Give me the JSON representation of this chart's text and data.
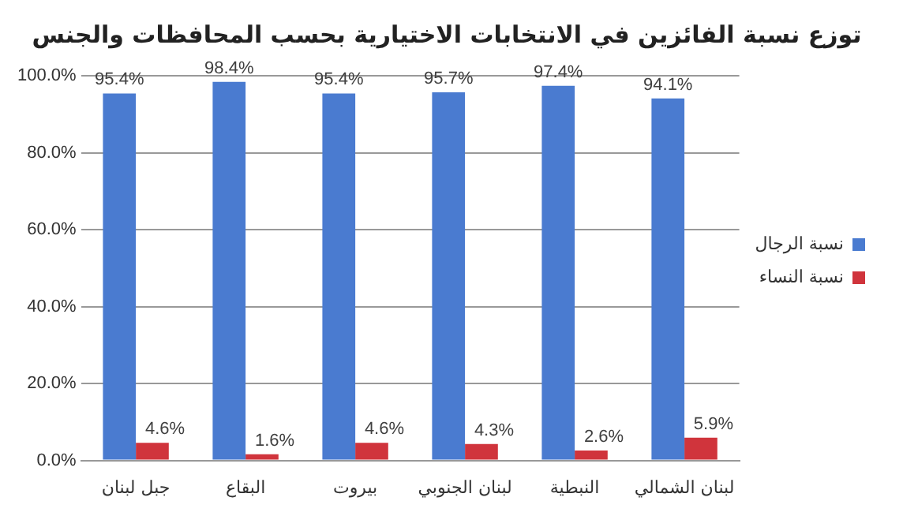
{
  "chart_data": {
    "type": "bar",
    "title": "توزع نسبة الفائزين في الانتخابات الاختيارية بحسب المحافظات والجنس",
    "categories": [
      "جبل لبنان",
      "البقاع",
      "بيروت",
      "لبنان الجنوبي",
      "النبطية",
      "لبنان الشمالي"
    ],
    "series": [
      {
        "name": "نسبة الرجال",
        "color": "#4a7bd0",
        "values": [
          95.4,
          98.4,
          95.4,
          95.7,
          97.4,
          94.1
        ],
        "value_labels": [
          "95.4%",
          "98.4%",
          "95.4%",
          "95.7%",
          "97.4%",
          "94.1%"
        ]
      },
      {
        "name": "نسبة النساء",
        "color": "#d0343c",
        "values": [
          4.6,
          1.6,
          4.6,
          4.3,
          2.6,
          5.9
        ],
        "value_labels": [
          "4.6%",
          "1.6%",
          "4.6%",
          "4.3%",
          "2.6%",
          "5.9%"
        ]
      }
    ],
    "ylim": [
      0,
      100
    ],
    "yticks": [
      {
        "value": 0,
        "label": "0.0%"
      },
      {
        "value": 20,
        "label": "20.0%"
      },
      {
        "value": 40,
        "label": "40.0%"
      },
      {
        "value": 60,
        "label": "60.0%"
      },
      {
        "value": 80,
        "label": "80.0%"
      },
      {
        "value": 100,
        "label": "100.0%"
      }
    ],
    "grid": "y",
    "legend": "right"
  }
}
